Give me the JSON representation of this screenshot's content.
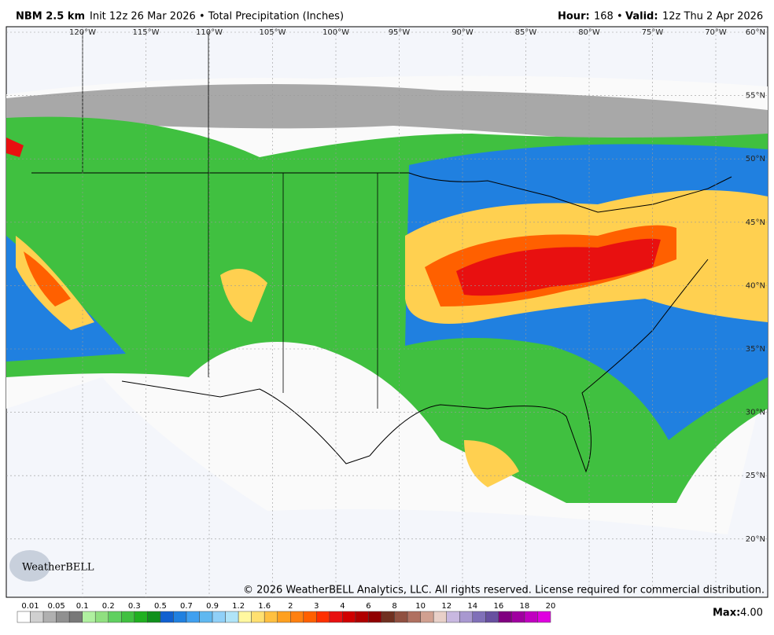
{
  "header": {
    "model": "NBM 2.5 km",
    "init": "Init 12z 26 Mar 2026 • Total Precipitation (Inches)",
    "hour_label": "Hour:",
    "hour": "168 •",
    "valid_label": "Valid:",
    "valid": "12z Thu 2 Apr 2026"
  },
  "map": {
    "lon_labels": [
      "120°W",
      "115°W",
      "110°W",
      "105°W",
      "100°W",
      "95°W",
      "90°W",
      "85°W",
      "80°W",
      "75°W",
      "70°W"
    ],
    "lat_labels": [
      "60°N",
      "55°N",
      "50°N",
      "45°N",
      "40°N",
      "35°N",
      "30°N",
      "25°N",
      "20°N"
    ],
    "copyright": "© 2026 WeatherBELL Analytics, LLC. All rights reserved. License required for commercial distribution.",
    "logo": "WeatherBELL"
  },
  "colorbar": {
    "labels": [
      "0.01",
      "0.05",
      "0.1",
      "0.2",
      "0.3",
      "0.5",
      "0.7",
      "0.9",
      "1.2",
      "1.6",
      "2",
      "3",
      "4",
      "6",
      "8",
      "10",
      "12",
      "14",
      "16",
      "18",
      "20"
    ],
    "colors": [
      "#ffffff",
      "#d0d0d0",
      "#b0b0b0",
      "#909090",
      "#787878",
      "#b0f0a0",
      "#90e080",
      "#60d060",
      "#40c040",
      "#20b020",
      "#10901c",
      "#1060d0",
      "#2080e0",
      "#40a0f0",
      "#60b8f0",
      "#90d0f8",
      "#b0e4f8",
      "#fff8a0",
      "#ffe070",
      "#ffc040",
      "#ffa020",
      "#ff8010",
      "#ff6000",
      "#ff3000",
      "#e81010",
      "#d00000",
      "#b00000",
      "#900000",
      "#703020",
      "#905040",
      "#b07060",
      "#d0a090",
      "#e8d0c8",
      "#c8b8e0",
      "#a898d0",
      "#8070b8",
      "#6850a0",
      "#800080",
      "#a000a0",
      "#c000c0",
      "#e000e0"
    ],
    "max_label": "Max:",
    "max": "4.00"
  }
}
